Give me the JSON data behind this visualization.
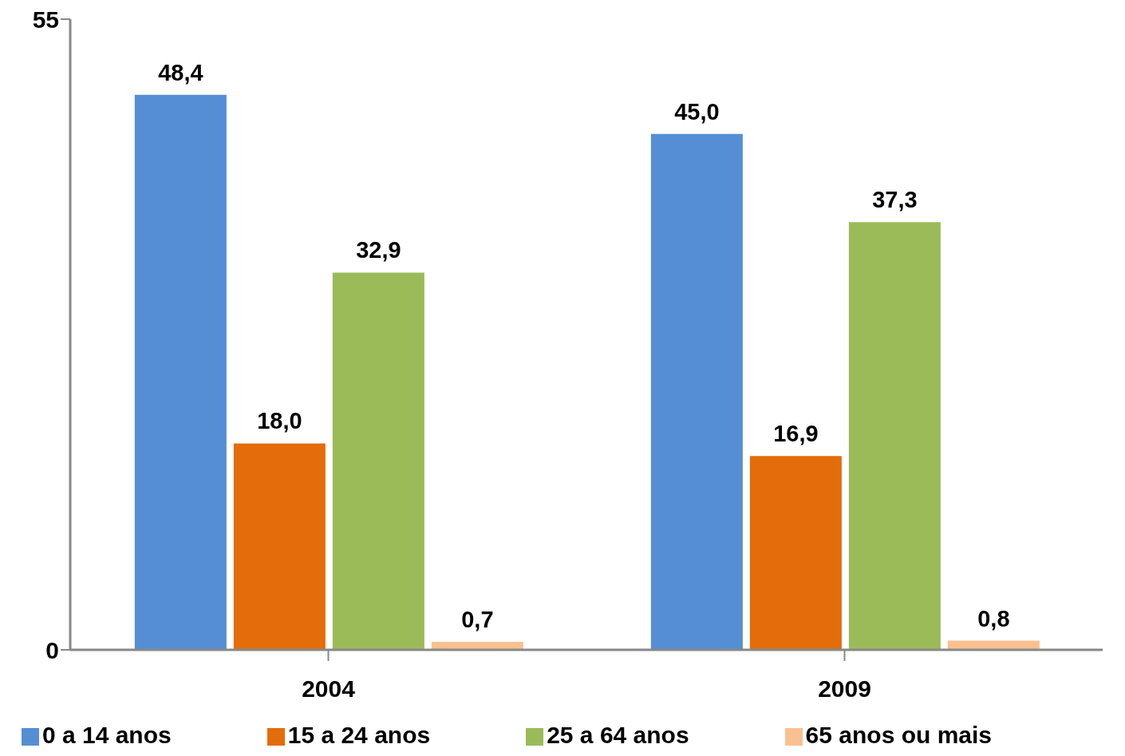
{
  "chart_data": {
    "type": "bar",
    "categories": [
      "2004",
      "2009"
    ],
    "series": [
      {
        "name": "0 a 14 anos",
        "color": "#558ed5",
        "values": [
          48.4,
          45.0
        ],
        "value_labels": [
          "48,4",
          "45,0"
        ]
      },
      {
        "name": "15 a 24 anos",
        "color": "#e46c0a",
        "values": [
          18.0,
          16.9
        ],
        "value_labels": [
          "18,0",
          "16,9"
        ]
      },
      {
        "name": "25 a 64 anos",
        "color": "#9bbb59",
        "values": [
          32.9,
          37.3
        ],
        "value_labels": [
          "32,9",
          "37,3"
        ]
      },
      {
        "name": "65 anos ou mais",
        "color": "#fac090",
        "values": [
          0.7,
          0.8
        ],
        "value_labels": [
          "0,7",
          "0,8"
        ]
      }
    ],
    "ylim": [
      0,
      55
    ],
    "yticks": [
      0,
      55
    ],
    "grid": false,
    "legend": "bottom"
  }
}
